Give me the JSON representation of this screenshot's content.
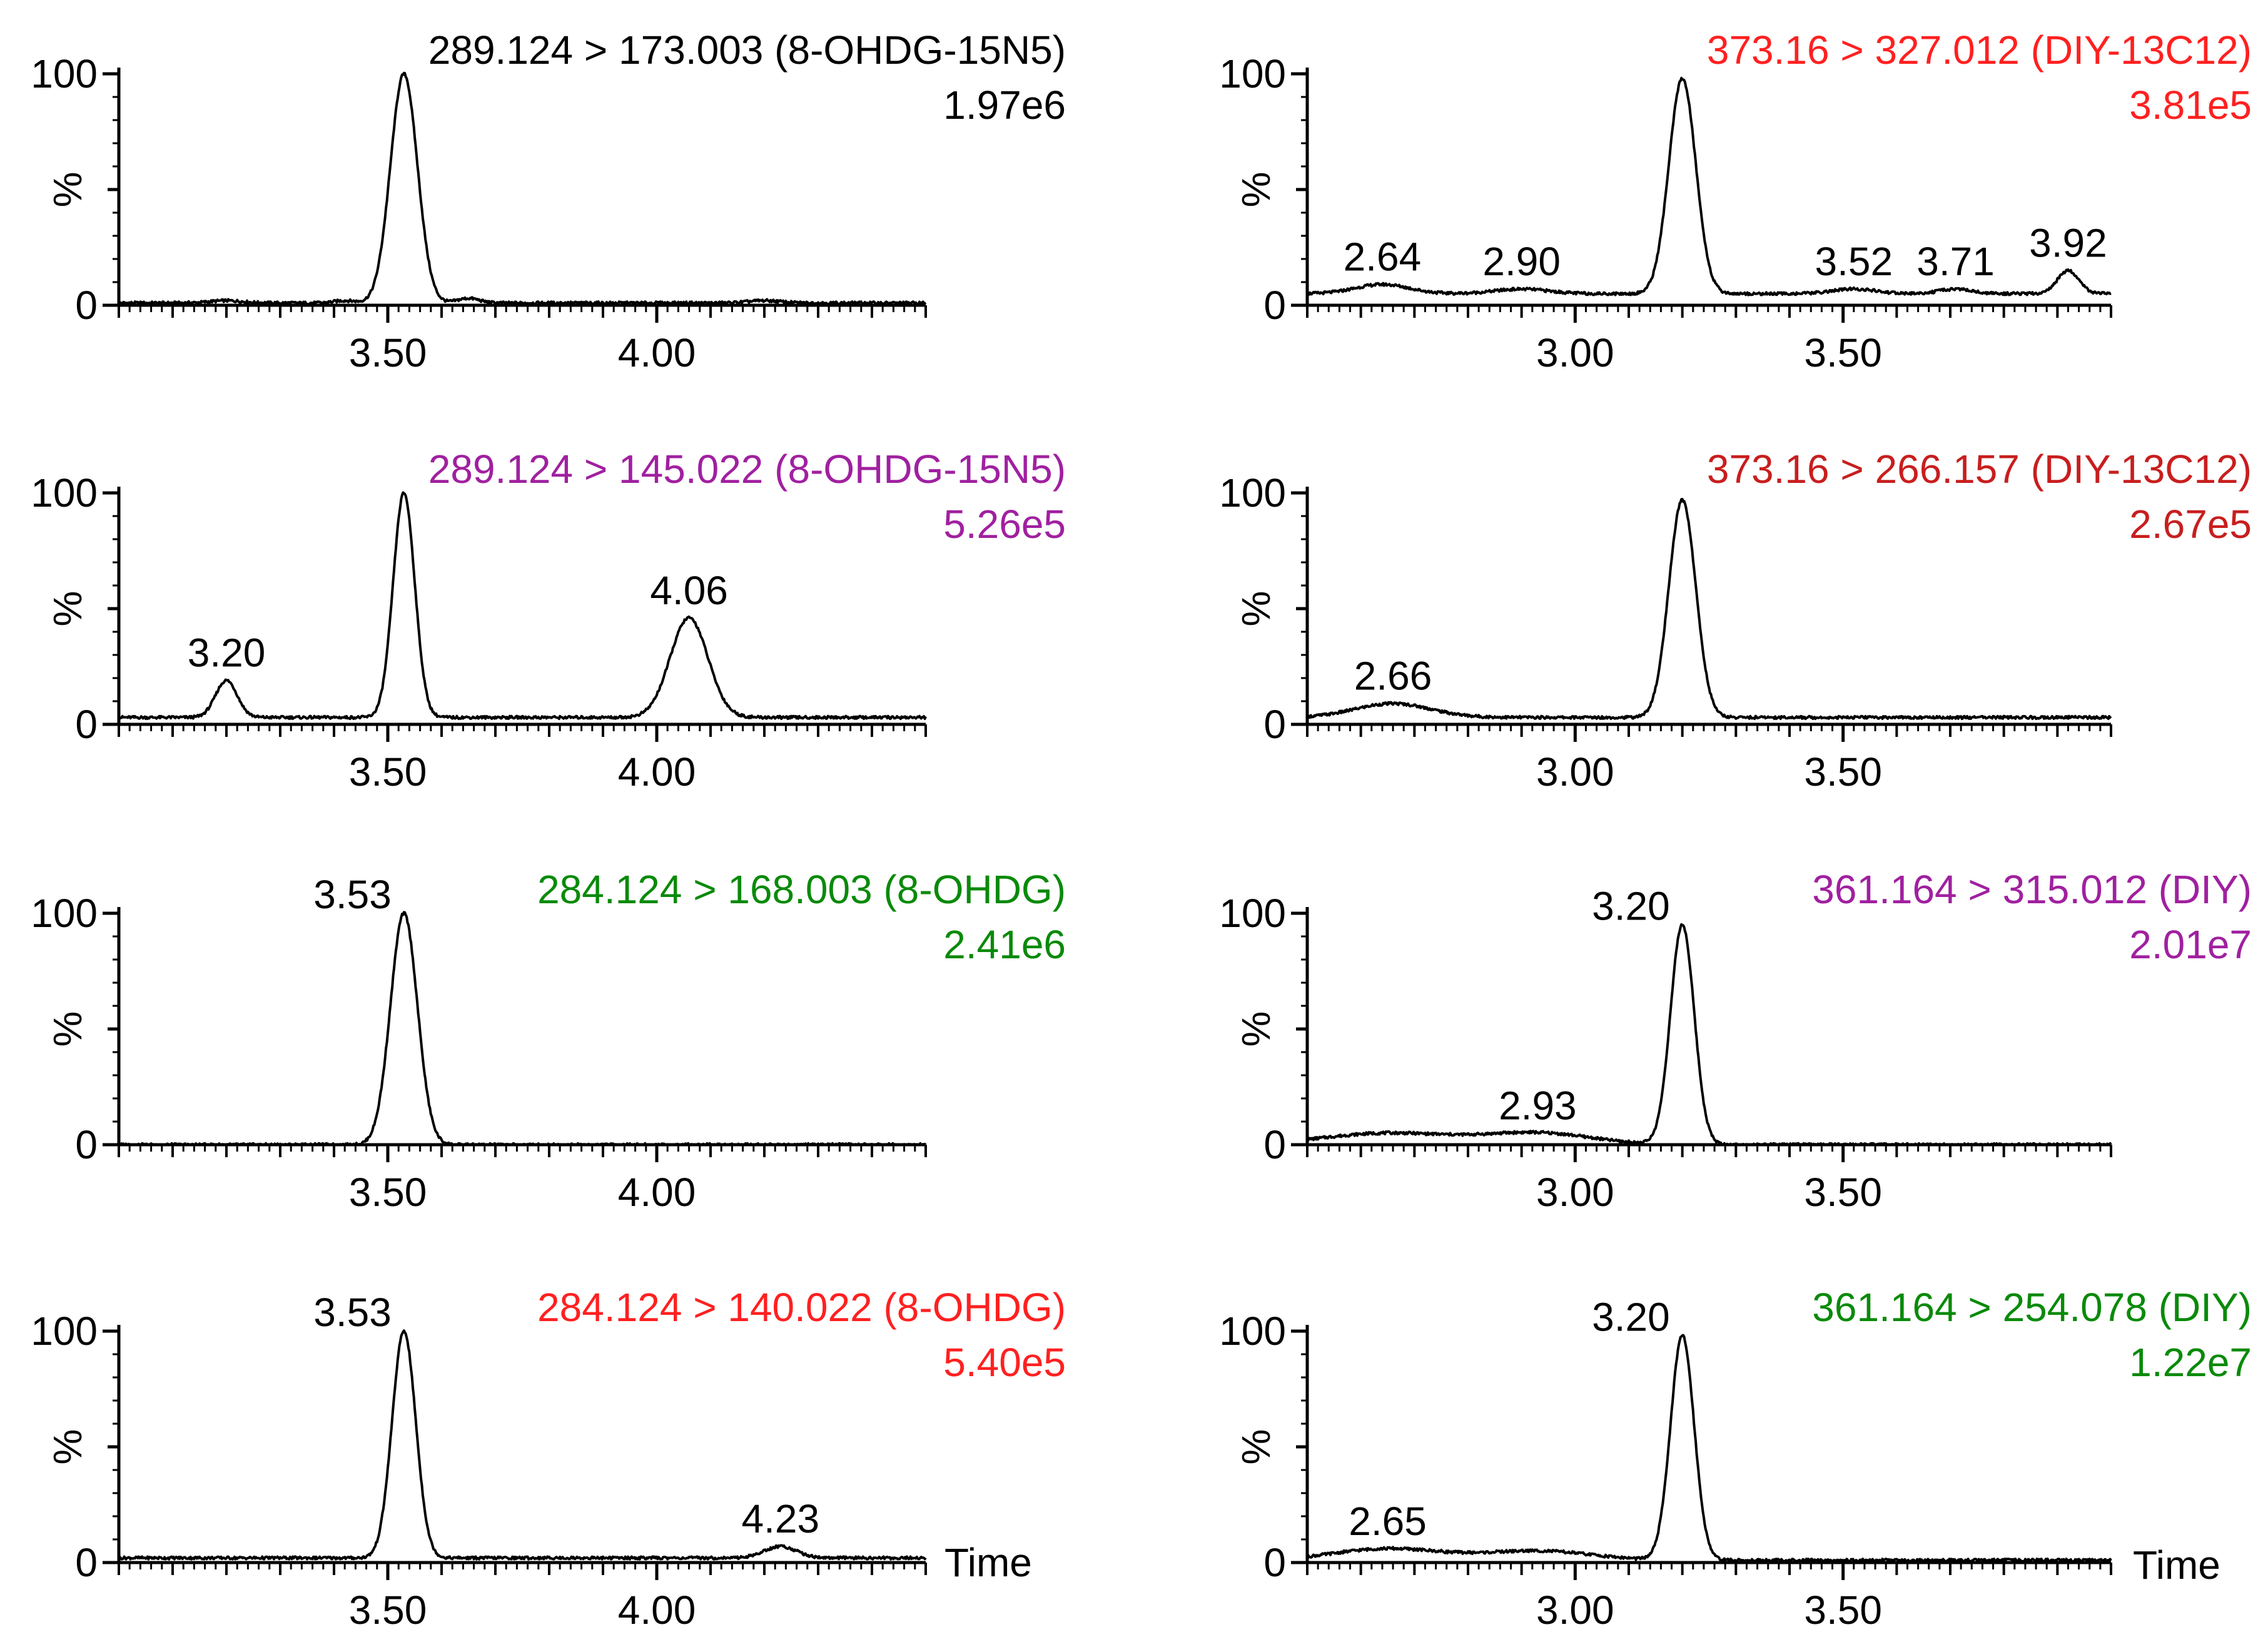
{
  "figure": {
    "time_label": "Time",
    "axis_ylabel": "%"
  },
  "chart_data": [
    {
      "type": "line",
      "panel": "left-1",
      "title": "289.124 > 173.003 (8-OHDG-15N5)",
      "intensity": "1.97e6",
      "color": "#000000",
      "xlabel": "Time",
      "ylabel": "%",
      "xlim": [
        3.0,
        4.5
      ],
      "ylim": [
        0,
        100
      ],
      "xticks": [
        "3.50",
        "4.00"
      ],
      "yticks": [
        "0",
        "100"
      ],
      "baseline": 1,
      "peaks": [
        {
          "rt": 3.53,
          "height": 99,
          "width": 0.025
        },
        {
          "rt": 3.2,
          "height": 1,
          "width": 0.03
        },
        {
          "rt": 3.42,
          "height": 1,
          "width": 0.02
        },
        {
          "rt": 3.65,
          "height": 2,
          "width": 0.02
        },
        {
          "rt": 4.2,
          "height": 1,
          "width": 0.03
        }
      ],
      "annotations": []
    },
    {
      "type": "line",
      "panel": "left-2",
      "title": "289.124 > 145.022 (8-OHDG-15N5)",
      "intensity": "5.26e5",
      "color": "#a020a0",
      "xlabel": "Time",
      "ylabel": "%",
      "xlim": [
        3.0,
        4.5
      ],
      "ylim": [
        0,
        100
      ],
      "xticks": [
        "3.50",
        "4.00"
      ],
      "yticks": [
        "0",
        "100"
      ],
      "baseline": 3,
      "peaks": [
        {
          "rt": 3.2,
          "height": 16,
          "width": 0.02
        },
        {
          "rt": 3.53,
          "height": 97,
          "width": 0.02
        },
        {
          "rt": 4.06,
          "height": 43,
          "width": 0.035
        }
      ],
      "annotations": [
        {
          "rt": 3.2,
          "text": "3.20"
        },
        {
          "rt": 4.06,
          "text": "4.06"
        }
      ]
    },
    {
      "type": "line",
      "panel": "left-3",
      "title": "284.124 > 168.003 (8-OHDG)",
      "intensity": "2.41e6",
      "color": "#0a8a0a",
      "xlabel": "Time",
      "ylabel": "%",
      "xlim": [
        3.0,
        4.5
      ],
      "ylim": [
        0,
        100
      ],
      "xticks": [
        "3.50",
        "4.00"
      ],
      "yticks": [
        "0",
        "100"
      ],
      "baseline": 0,
      "peaks": [
        {
          "rt": 3.53,
          "height": 100,
          "width": 0.025
        }
      ],
      "annotations": [
        {
          "rt": 3.53,
          "text": "3.53",
          "side": "left"
        }
      ]
    },
    {
      "type": "line",
      "panel": "left-4",
      "title": "284.124 > 140.022 (8-OHDG)",
      "intensity": "5.40e5",
      "color": "#ff2020",
      "xlabel": "Time",
      "ylabel": "%",
      "xlim": [
        3.0,
        4.5
      ],
      "ylim": [
        0,
        100
      ],
      "xticks": [
        "3.50",
        "4.00"
      ],
      "yticks": [
        "0",
        "100"
      ],
      "baseline": 2,
      "peaks": [
        {
          "rt": 3.53,
          "height": 98,
          "width": 0.022
        },
        {
          "rt": 4.23,
          "height": 5,
          "width": 0.03
        }
      ],
      "annotations": [
        {
          "rt": 3.53,
          "text": "3.53",
          "side": "left"
        },
        {
          "rt": 4.23,
          "text": "4.23"
        }
      ]
    },
    {
      "type": "line",
      "panel": "right-1",
      "title": "373.16 > 327.012 (DIY-13C12)",
      "intensity": "3.81e5",
      "color": "#ff2020",
      "xlabel": "Time",
      "ylabel": "%",
      "xlim": [
        2.5,
        4.0
      ],
      "ylim": [
        0,
        100
      ],
      "xticks": [
        "3.00",
        "3.50"
      ],
      "yticks": [
        "0",
        "100"
      ],
      "baseline": 5,
      "peaks": [
        {
          "rt": 2.64,
          "height": 4,
          "width": 0.05
        },
        {
          "rt": 2.9,
          "height": 2,
          "width": 0.05
        },
        {
          "rt": 3.2,
          "height": 93,
          "width": 0.025
        },
        {
          "rt": 3.52,
          "height": 2,
          "width": 0.04
        },
        {
          "rt": 3.71,
          "height": 2,
          "width": 0.03
        },
        {
          "rt": 3.92,
          "height": 10,
          "width": 0.02
        }
      ],
      "annotations": [
        {
          "rt": 2.64,
          "text": "2.64"
        },
        {
          "rt": 2.9,
          "text": "2.90"
        },
        {
          "rt": 3.52,
          "text": "3.52"
        },
        {
          "rt": 3.71,
          "text": "3.71"
        },
        {
          "rt": 3.92,
          "text": "3.92"
        }
      ]
    },
    {
      "type": "line",
      "panel": "right-2",
      "title": "373.16 > 266.157 (DIY-13C12)",
      "intensity": "2.67e5",
      "color": "#c81e1e",
      "xlabel": "Time",
      "ylabel": "%",
      "xlim": [
        2.5,
        4.0
      ],
      "ylim": [
        0,
        100
      ],
      "xticks": [
        "3.00",
        "3.50"
      ],
      "yticks": [
        "0",
        "100"
      ],
      "baseline": 3,
      "peaks": [
        {
          "rt": 2.66,
          "height": 6,
          "width": 0.07
        },
        {
          "rt": 3.2,
          "height": 94,
          "width": 0.025
        }
      ],
      "annotations": [
        {
          "rt": 2.66,
          "text": "2.66"
        }
      ]
    },
    {
      "type": "line",
      "panel": "right-3",
      "title": "361.164 > 315.012 (DIY)",
      "intensity": "2.01e7",
      "color": "#a020a0",
      "xlabel": "Time",
      "ylabel": "%",
      "xlim": [
        2.5,
        4.0
      ],
      "ylim": [
        0,
        100
      ],
      "xticks": [
        "3.00",
        "3.50"
      ],
      "yticks": [
        "0",
        "100"
      ],
      "baseline": 0,
      "peaks": [
        {
          "rt": 2.65,
          "height": 5,
          "width": 0.12
        },
        {
          "rt": 2.93,
          "height": 5,
          "width": 0.1
        },
        {
          "rt": 3.2,
          "height": 95,
          "width": 0.022
        }
      ],
      "annotations": [
        {
          "rt": 2.93,
          "text": "2.93"
        },
        {
          "rt": 3.2,
          "text": "3.20",
          "side": "left"
        }
      ]
    },
    {
      "type": "line",
      "panel": "right-4",
      "title": "361.164 > 254.078 (DIY)",
      "intensity": "1.22e7",
      "color": "#0a8a0a",
      "xlabel": "Time",
      "ylabel": "%",
      "xlim": [
        2.5,
        4.0
      ],
      "ylim": [
        0,
        100
      ],
      "xticks": [
        "3.00",
        "3.50"
      ],
      "yticks": [
        "0",
        "100"
      ],
      "baseline": 1,
      "peaks": [
        {
          "rt": 2.65,
          "height": 5,
          "width": 0.1
        },
        {
          "rt": 2.93,
          "height": 4,
          "width": 0.1
        },
        {
          "rt": 3.2,
          "height": 97,
          "width": 0.022
        }
      ],
      "annotations": [
        {
          "rt": 2.65,
          "text": "2.65"
        },
        {
          "rt": 3.2,
          "text": "3.20",
          "side": "left"
        }
      ]
    }
  ]
}
